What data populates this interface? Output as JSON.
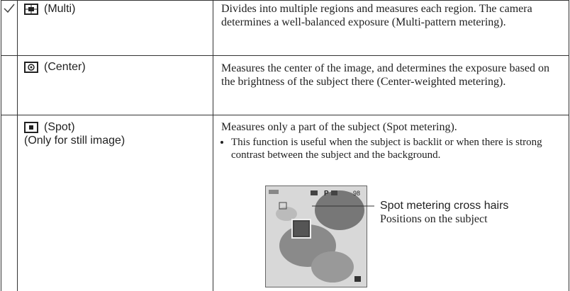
{
  "rows": [
    {
      "name": "(Multi)",
      "description": [
        "Divides into multiple regions and measures each region. The camera determines a well-balanced exposure (Multi-pattern metering)."
      ]
    },
    {
      "name": "(Center)",
      "description": [
        "Measures the center of the image, and determines the exposure based on the brightness of the subject there (Center-weighted metering)."
      ]
    },
    {
      "name": "(Spot)",
      "note": "(Only for still image)",
      "description": [
        "Measures only a part of the subject (Spot metering)."
      ],
      "bullets": [
        "This function is useful when the subject is backlit or when there is strong contrast between the subject and the background."
      ],
      "figure": {
        "screen_mode": "P",
        "screen_count": "98",
        "callout_title": "Spot metering cross hairs",
        "callout_text": "Positions on the subject"
      }
    }
  ]
}
